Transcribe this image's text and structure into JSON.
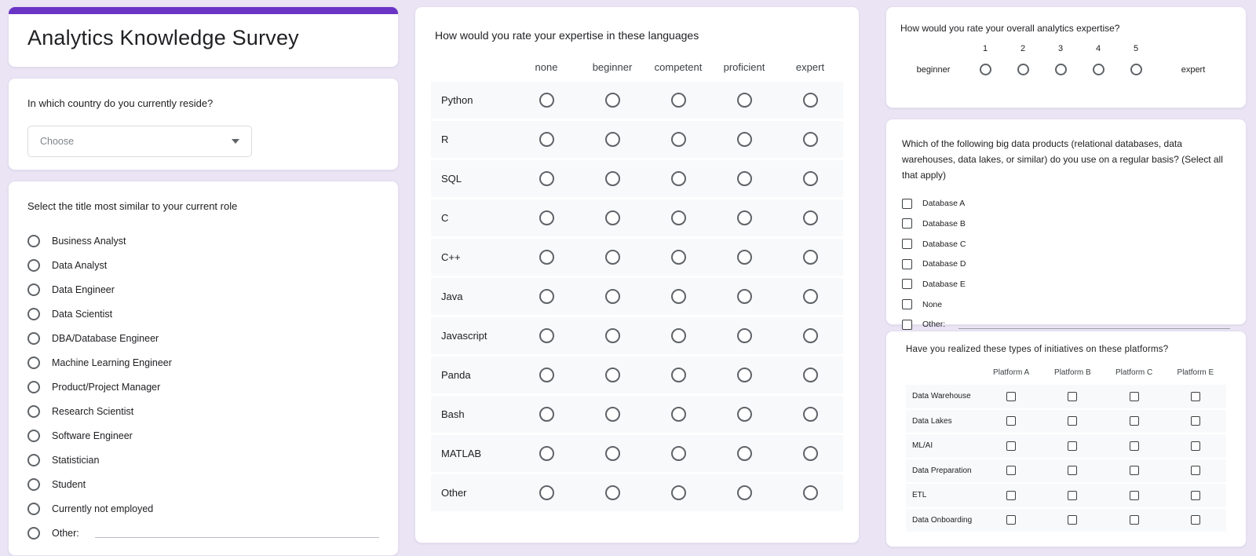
{
  "colors": {
    "accent": "#6a34c4",
    "background": "#eae4f5",
    "row_stripe": "#f8f9fa"
  },
  "left": {
    "title": "Analytics Knowledge Survey",
    "country_question": {
      "label": "In which country do you currently reside?",
      "dropdown_placeholder": "Choose"
    },
    "role_question": {
      "label": "Select the title most similar to your current role",
      "options": [
        "Business Analyst",
        "Data Analyst",
        "Data Engineer",
        "Data Scientist",
        "DBA/Database Engineer",
        "Machine Learning Engineer",
        "Product/Project Manager",
        "Research Scientist",
        "Software Engineer",
        "Statistician",
        "Student",
        "Currently not employed"
      ],
      "other_label": "Other:"
    }
  },
  "middle": {
    "languages_grid": {
      "question": "How would you rate your expertise in these languages",
      "columns": [
        "none",
        "beginner",
        "competent",
        "proficient",
        "expert"
      ],
      "rows": [
        "Python",
        "R",
        "SQL",
        "C",
        "C++",
        "Java",
        "Javascript",
        "Panda",
        "Bash",
        "MATLAB",
        "Other"
      ]
    }
  },
  "right": {
    "scale_question": {
      "question": "How would you rate your overall analytics expertise?",
      "numbers": [
        "1",
        "2",
        "3",
        "4",
        "5"
      ],
      "low_label": "beginner",
      "high_label": "expert"
    },
    "products_question": {
      "question": "Which of the following big data products (relational databases, data warehouses, data lakes, or similar) do you use on a regular basis? (Select all that apply)",
      "options": [
        "Database A",
        "Database B",
        "Database C",
        "Database D",
        "Database E",
        "None"
      ],
      "other_label": "Other:"
    },
    "initiatives_grid": {
      "question": "Have you realized these types of initiatives on these platforms?",
      "columns": [
        "Platform A",
        "Platform B",
        "Platform C",
        "Platform E"
      ],
      "rows": [
        "Data Warehouse",
        "Data Lakes",
        "ML/AI",
        "Data Preparation",
        "ETL",
        "Data Onboarding"
      ]
    }
  }
}
